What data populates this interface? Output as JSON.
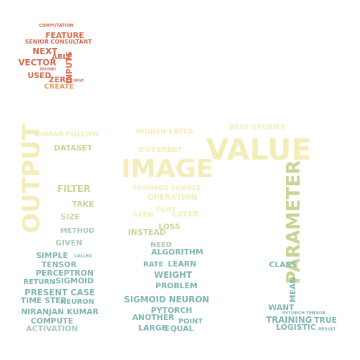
{
  "palette": {
    "red": "#d46a4f",
    "orange": "#e39a5c",
    "cream": "#f3eeb8",
    "olive": "#c8d596",
    "teal": "#7fb5b0",
    "sage": "#a9c9b6"
  },
  "words": [
    {
      "text": "COMPUTATION",
      "color": "#d46a4f"
    },
    {
      "text": "FEATURE",
      "color": "#d46a4f"
    },
    {
      "text": "SENIOR CONSULTANT",
      "color": "#d46a4f"
    },
    {
      "text": "NEXT",
      "color": "#d46a4f"
    },
    {
      "text": "ABLE",
      "color": "#d46a4f"
    },
    {
      "text": "VECTOR",
      "color": "#d46a4f"
    },
    {
      "text": "INPUTS",
      "color": "#d46a4f"
    },
    {
      "text": "USED",
      "color": "#d46a4f"
    },
    {
      "text": "ZERO",
      "color": "#d46a4f"
    },
    {
      "text": "CREATE",
      "color": "#e39a5c"
    },
    {
      "text": "SECOND",
      "color": "#d46a4f"
    },
    {
      "text": "CURVE",
      "color": "#d46a4f"
    },
    {
      "text": "KUMAR FOLLOW",
      "color": "#f3eeb8"
    },
    {
      "text": "DATASET",
      "color": "#c8d596"
    },
    {
      "text": "OUTPUT",
      "color": "#f3eeb8"
    },
    {
      "text": "FILTER",
      "color": "#c8d596"
    },
    {
      "text": "TAKE",
      "color": "#c8d596"
    },
    {
      "text": "SIZE",
      "color": "#c8d596"
    },
    {
      "text": "METHOD",
      "color": "#a9c9b6"
    },
    {
      "text": "GIVEN",
      "color": "#a9c9b6"
    },
    {
      "text": "SIMPLE",
      "color": "#7fb5b0"
    },
    {
      "text": "CALLED",
      "color": "#7fb5b0"
    },
    {
      "text": "TENSOR",
      "color": "#7fb5b0"
    },
    {
      "text": "PERCEPTRON",
      "color": "#7fb5b0"
    },
    {
      "text": "RETURN",
      "color": "#7fb5b0"
    },
    {
      "text": "SIGMOID",
      "color": "#7fb5b0"
    },
    {
      "text": "PRESENT CASE",
      "color": "#7fb5b0"
    },
    {
      "text": "TIME STEP",
      "color": "#7fb5b0"
    },
    {
      "text": "NEURON",
      "color": "#7fb5b0"
    },
    {
      "text": "NIRANJAN KUMAR",
      "color": "#7fb5b0"
    },
    {
      "text": "COMPUTE",
      "color": "#7fb5b0"
    },
    {
      "text": "ACTIVATION",
      "color": "#a9c9b6"
    },
    {
      "text": "HIDDEN LAYER",
      "color": "#f3eeb8"
    },
    {
      "text": "DIFFERENT",
      "color": "#f3eeb8"
    },
    {
      "text": "IMAGE",
      "color": "#f3eeb8"
    },
    {
      "text": "TOWARDS SCIENCE",
      "color": "#f3eeb8"
    },
    {
      "text": "OPERATION",
      "color": "#f3eeb8"
    },
    {
      "text": "PLOT",
      "color": "#f3eeb8"
    },
    {
      "text": "LAYER",
      "color": "#f3eeb8"
    },
    {
      "text": "SEEN",
      "color": "#f3eeb8"
    },
    {
      "text": "LOSS",
      "color": "#c8d596"
    },
    {
      "text": "INSTEAD",
      "color": "#c8d596"
    },
    {
      "text": "NEED",
      "color": "#a9c9b6"
    },
    {
      "text": "ALGORITHM",
      "color": "#7fb5b0"
    },
    {
      "text": "LEARN",
      "color": "#7fb5b0"
    },
    {
      "text": "RATE",
      "color": "#7fb5b0"
    },
    {
      "text": "WEIGHT",
      "color": "#7fb5b0"
    },
    {
      "text": "PROBLEM",
      "color": "#7fb5b0"
    },
    {
      "text": "SIGMOID NEURON",
      "color": "#7fb5b0"
    },
    {
      "text": "PYTORCH",
      "color": "#7fb5b0"
    },
    {
      "text": "ANOTHER",
      "color": "#7fb5b0"
    },
    {
      "text": "POINT",
      "color": "#7fb5b0"
    },
    {
      "text": "LARGE",
      "color": "#7fb5b0"
    },
    {
      "text": "EQUAL",
      "color": "#7fb5b0"
    },
    {
      "text": "BEST STORIES",
      "color": "#f3eeb8"
    },
    {
      "text": "VALUE",
      "color": "#f3eeb8"
    },
    {
      "text": "PARAMETER",
      "color": "#c8d596"
    },
    {
      "text": "CLASS",
      "color": "#7fb5b0"
    },
    {
      "text": "MEAN",
      "color": "#7fb5b0"
    },
    {
      "text": "WANT",
      "color": "#7fb5b0"
    },
    {
      "text": "PYTORCH TENSOR",
      "color": "#7fb5b0"
    },
    {
      "text": "TRAINING",
      "color": "#7fb5b0"
    },
    {
      "text": "LOGISTIC",
      "color": "#7fb5b0"
    },
    {
      "text": "TRUE",
      "color": "#7fb5b0"
    },
    {
      "text": "RESULT",
      "color": "#7fb5b0"
    }
  ]
}
